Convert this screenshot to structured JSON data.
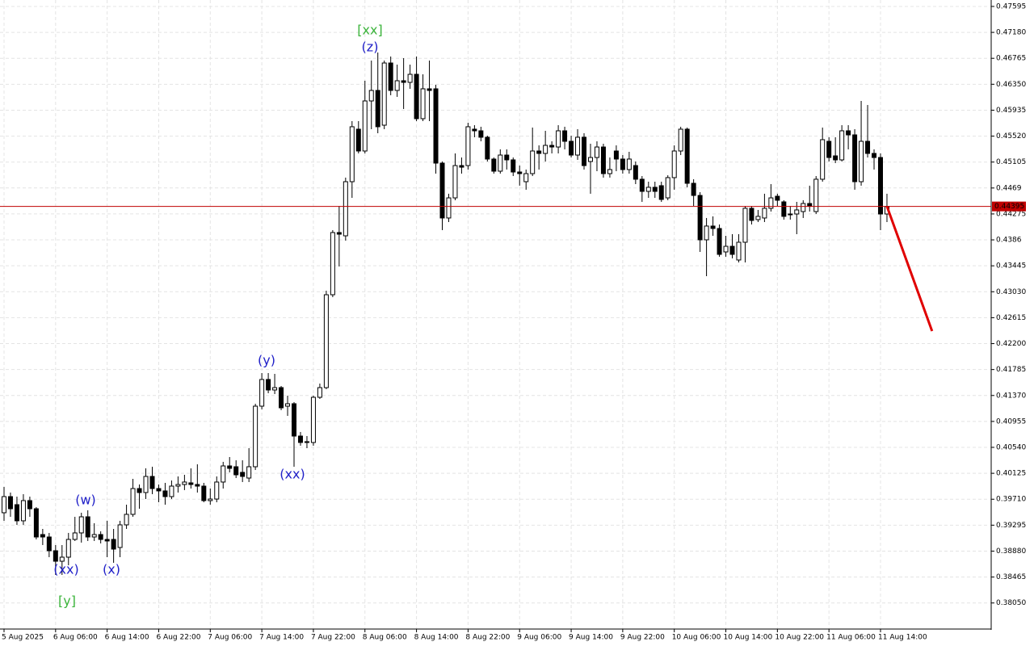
{
  "chart_data": {
    "type": "candlestick",
    "ylim": [
      0.37633,
      0.47698
    ],
    "yticks": [
      0.47595,
      {
        "value": 0.4718,
        "label": "0.47180"
      },
      0.46765,
      {
        "value": 0.4635,
        "label": "0.46350"
      },
      0.45935,
      {
        "value": 0.4552,
        "label": "0.45520"
      },
      0.45105,
      0.4469,
      0.44275,
      0.4386,
      0.43445,
      {
        "value": 0.4303,
        "label": "0.43030"
      },
      0.42615,
      {
        "value": 0.422,
        "label": "0.42200"
      },
      0.41785,
      {
        "value": 0.4137,
        "label": "0.41370"
      },
      0.40955,
      {
        "value": 0.4054,
        "label": "0.40540"
      },
      0.40125,
      {
        "value": 0.3971,
        "label": "0.39710"
      },
      0.39295,
      {
        "value": 0.3888,
        "label": "0.38880"
      },
      0.38465,
      {
        "value": 0.3805,
        "label": "0.38050"
      }
    ],
    "xticks": [
      {
        "value": 0,
        "label": "5 Aug 2025"
      },
      {
        "value": 8,
        "label": "6 Aug 06:00"
      },
      {
        "value": 16,
        "label": "6 Aug 14:00"
      },
      {
        "value": 24,
        "label": "6 Aug 22:00"
      },
      {
        "value": 32,
        "label": "7 Aug 06:00"
      },
      {
        "value": 40,
        "label": "7 Aug 14:00"
      },
      {
        "value": 48,
        "label": "7 Aug 22:00"
      },
      {
        "value": 56,
        "label": "8 Aug 06:00"
      },
      {
        "value": 64,
        "label": "8 Aug 14:00"
      },
      {
        "value": 72,
        "label": "8 Aug 22:00"
      },
      {
        "value": 80,
        "label": "9 Aug 06:00"
      },
      {
        "value": 88,
        "label": "9 Aug 14:00"
      },
      {
        "value": 96,
        "label": "9 Aug 22:00"
      },
      {
        "value": 104,
        "label": "10 Aug 06:00"
      },
      {
        "value": 112,
        "label": "10 Aug 14:00"
      },
      {
        "value": 120,
        "label": "10 Aug 22:00"
      },
      {
        "value": 128,
        "label": "11 Aug 06:00"
      },
      {
        "value": 136,
        "label": "11 Aug 14:00"
      }
    ],
    "grid": true,
    "up_color": "#ffffff",
    "down_color": "#000000",
    "candles": [
      [
        0.39494,
        0.39907,
        0.39365,
        0.39752
      ],
      [
        0.39752,
        0.39817,
        0.39429,
        0.39558
      ],
      [
        0.39623,
        0.39752,
        0.393,
        0.39365
      ],
      [
        0.39365,
        0.39791,
        0.393,
        0.39688
      ],
      [
        0.39688,
        0.39752,
        0.39429,
        0.39558
      ],
      [
        0.39558,
        0.39584,
        0.39067,
        0.39106
      ],
      [
        0.39145,
        0.39235,
        0.38977,
        0.39106
      ],
      [
        0.39106,
        0.39171,
        0.38783,
        0.38886
      ],
      [
        0.38886,
        0.38977,
        0.38499,
        0.38718
      ],
      [
        0.38718,
        0.38977,
        0.38499,
        0.38783
      ],
      [
        0.38783,
        0.39171,
        0.38654,
        0.39067
      ],
      [
        0.39067,
        0.39429,
        0.39042,
        0.39171
      ],
      [
        0.39171,
        0.39494,
        0.39016,
        0.39429
      ],
      [
        0.39429,
        0.39533,
        0.39042,
        0.39106
      ],
      [
        0.39106,
        0.39326,
        0.39042,
        0.39145
      ],
      [
        0.39145,
        0.39197,
        0.39003,
        0.39067
      ],
      [
        0.39067,
        0.39365,
        0.38783,
        0.39042
      ],
      [
        0.39067,
        0.39235,
        0.38693,
        0.38912
      ],
      [
        0.38938,
        0.39365,
        0.38783,
        0.393
      ],
      [
        0.393,
        0.39623,
        0.39235,
        0.39468
      ],
      [
        0.39468,
        0.40036,
        0.39429,
        0.39881
      ],
      [
        0.39881,
        0.39946,
        0.39558,
        0.39817
      ],
      [
        0.39817,
        0.40204,
        0.39713,
        0.40075
      ],
      [
        0.40075,
        0.4023,
        0.39791,
        0.39881
      ],
      [
        0.39881,
        0.39946,
        0.39662,
        0.39843
      ],
      [
        0.39843,
        0.39972,
        0.39623,
        0.39752
      ],
      [
        0.39752,
        0.4001,
        0.39713,
        0.3992
      ],
      [
        0.3992,
        0.40075,
        0.39817,
        0.39946
      ],
      [
        0.39946,
        0.40101,
        0.39856,
        0.39985
      ],
      [
        0.39972,
        0.40204,
        0.39881,
        0.39946
      ],
      [
        0.39946,
        0.40269,
        0.39817,
        0.3992
      ],
      [
        0.3992,
        0.39972,
        0.39662,
        0.39688
      ],
      [
        0.39688,
        0.39881,
        0.39623,
        0.39713
      ],
      [
        0.39713,
        0.40075,
        0.39662,
        0.39985
      ],
      [
        0.39985,
        0.40308,
        0.39881,
        0.40243
      ],
      [
        0.40243,
        0.40385,
        0.4014,
        0.40204
      ],
      [
        0.4023,
        0.40333,
        0.40049,
        0.40101
      ],
      [
        0.4014,
        0.40333,
        0.39985,
        0.40075
      ],
      [
        0.40049,
        0.40527,
        0.39985,
        0.4023
      ],
      [
        0.4023,
        0.41238,
        0.40178,
        0.41199
      ],
      [
        0.41199,
        0.41729,
        0.41148,
        0.41626
      ],
      [
        0.41626,
        0.41729,
        0.41406,
        0.41458
      ],
      [
        0.41458,
        0.41716,
        0.41393,
        0.41496
      ],
      [
        0.41496,
        0.41522,
        0.41135,
        0.41173
      ],
      [
        0.41199,
        0.41367,
        0.41044,
        0.41238
      ],
      [
        0.41238,
        0.41264,
        0.4023,
        0.40721
      ],
      [
        0.40721,
        0.40786,
        0.40566,
        0.40618
      ],
      [
        0.40618,
        0.40721,
        0.40527,
        0.40631
      ],
      [
        0.40618,
        0.41367,
        0.40566,
        0.41341
      ],
      [
        0.41341,
        0.41561,
        0.41315,
        0.41496
      ],
      [
        0.41496,
        0.43047,
        0.41471,
        0.42982
      ],
      [
        0.42982,
        0.44016,
        0.42943,
        0.43977
      ],
      [
        0.43977,
        0.44403,
        0.43434,
        0.43951
      ],
      [
        0.43925,
        0.44856,
        0.43848,
        0.44791
      ],
      [
        0.44791,
        0.4576,
        0.44532,
        0.4567
      ],
      [
        0.45631,
        0.4576,
        0.45243,
        0.45282
      ],
      [
        0.45282,
        0.46406,
        0.45243,
        0.46083
      ],
      [
        0.46083,
        0.46729,
        0.45631,
        0.46251
      ],
      [
        0.46251,
        0.46858,
        0.45566,
        0.4567
      ],
      [
        0.45695,
        0.46729,
        0.45631,
        0.4669
      ],
      [
        0.4669,
        0.46794,
        0.46174,
        0.46251
      ],
      [
        0.46251,
        0.46664,
        0.46148,
        0.46406
      ],
      [
        0.46406,
        0.46768,
        0.45954,
        0.4638
      ],
      [
        0.4638,
        0.46664,
        0.46277,
        0.46509
      ],
      [
        0.46509,
        0.46794,
        0.4576,
        0.45799
      ],
      [
        0.45799,
        0.46509,
        0.4576,
        0.46277
      ],
      [
        0.46277,
        0.46729,
        0.4576,
        0.46251
      ],
      [
        0.46277,
        0.46341,
        0.4492,
        0.45088
      ],
      [
        0.45088,
        0.45114,
        0.44016,
        0.4421
      ],
      [
        0.4421,
        0.44598,
        0.44145,
        0.44532
      ],
      [
        0.44532,
        0.45243,
        0.44494,
        0.45049
      ],
      [
        0.45049,
        0.45178,
        0.4492,
        0.45023
      ],
      [
        0.45049,
        0.45734,
        0.44985,
        0.4567
      ],
      [
        0.45631,
        0.45695,
        0.45502,
        0.45605
      ],
      [
        0.45605,
        0.4567,
        0.45437,
        0.45502
      ],
      [
        0.45502,
        0.45527,
        0.45114,
        0.45153
      ],
      [
        0.45153,
        0.45178,
        0.4492,
        0.44959
      ],
      [
        0.44959,
        0.45308,
        0.4492,
        0.45217
      ],
      [
        0.45217,
        0.45308,
        0.44985,
        0.4514
      ],
      [
        0.4514,
        0.45178,
        0.44881,
        0.44946
      ],
      [
        0.44946,
        0.45049,
        0.44727,
        0.4492
      ],
      [
        0.44791,
        0.44985,
        0.44662,
        0.4492
      ],
      [
        0.4492,
        0.45657,
        0.44881,
        0.45282
      ],
      [
        0.45282,
        0.45372,
        0.44985,
        0.45243
      ],
      [
        0.45243,
        0.45605,
        0.45114,
        0.45372
      ],
      [
        0.45372,
        0.45437,
        0.45243,
        0.45346
      ],
      [
        0.45346,
        0.45695,
        0.45243,
        0.45605
      ],
      [
        0.45605,
        0.4567,
        0.45308,
        0.45437
      ],
      [
        0.45437,
        0.45527,
        0.45178,
        0.45217
      ],
      [
        0.45217,
        0.45631,
        0.4514,
        0.45502
      ],
      [
        0.45502,
        0.45566,
        0.44985,
        0.45049
      ],
      [
        0.45114,
        0.45398,
        0.44598,
        0.45178
      ],
      [
        0.45178,
        0.45437,
        0.44959,
        0.45346
      ],
      [
        0.45346,
        0.45398,
        0.44856,
        0.4492
      ],
      [
        0.4492,
        0.45178,
        0.44856,
        0.44985
      ],
      [
        0.45282,
        0.45372,
        0.44959,
        0.45153
      ],
      [
        0.45153,
        0.45217,
        0.4492,
        0.44985
      ],
      [
        0.44985,
        0.45269,
        0.4492,
        0.45153
      ],
      [
        0.45049,
        0.45114,
        0.44752,
        0.4483
      ],
      [
        0.4483,
        0.44881,
        0.44468,
        0.44636
      ],
      [
        0.44636,
        0.44791,
        0.44532,
        0.44701
      ],
      [
        0.44701,
        0.44791,
        0.44532,
        0.44636
      ],
      [
        0.44727,
        0.44791,
        0.44468,
        0.44507
      ],
      [
        0.44532,
        0.44894,
        0.44494,
        0.44856
      ],
      [
        0.44856,
        0.45372,
        0.44662,
        0.45282
      ],
      [
        0.45282,
        0.4567,
        0.45217,
        0.45631
      ],
      [
        0.45631,
        0.45657,
        0.44701,
        0.44765
      ],
      [
        0.44765,
        0.4483,
        0.44403,
        0.44571
      ],
      [
        0.44571,
        0.44623,
        0.43667,
        0.43861
      ],
      [
        0.43861,
        0.4421,
        0.43279,
        0.44081
      ],
      [
        0.44081,
        0.44236,
        0.43925,
        0.44042
      ],
      [
        0.44042,
        0.44106,
        0.4359,
        0.43628
      ],
      [
        0.43667,
        0.43925,
        0.4359,
        0.43757
      ],
      [
        0.43757,
        0.43951,
        0.43564,
        0.43628
      ],
      [
        0.43538,
        0.43951,
        0.43499,
        0.43822
      ],
      [
        0.43822,
        0.44403,
        0.43499,
        0.44365
      ],
      [
        0.44365,
        0.44403,
        0.44106,
        0.44171
      ],
      [
        0.44184,
        0.44339,
        0.44145,
        0.44236
      ],
      [
        0.4421,
        0.44598,
        0.44145,
        0.44365
      ],
      [
        0.44365,
        0.44752,
        0.44313,
        0.44532
      ],
      [
        0.44558,
        0.44598,
        0.44403,
        0.44494
      ],
      [
        0.44468,
        0.44494,
        0.44184,
        0.44236
      ],
      [
        0.44274,
        0.44403,
        0.44184,
        0.44261
      ],
      [
        0.44274,
        0.44468,
        0.43951,
        0.44339
      ],
      [
        0.44313,
        0.44494,
        0.4421,
        0.44442
      ],
      [
        0.44442,
        0.44727,
        0.44313,
        0.44403
      ],
      [
        0.44313,
        0.44881,
        0.44274,
        0.4483
      ],
      [
        0.4483,
        0.45657,
        0.44791,
        0.45463
      ],
      [
        0.45437,
        0.45502,
        0.45114,
        0.45178
      ],
      [
        0.45204,
        0.45502,
        0.45088,
        0.4514
      ],
      [
        0.4514,
        0.45695,
        0.45114,
        0.45605
      ],
      [
        0.45605,
        0.45695,
        0.45308,
        0.4554
      ],
      [
        0.4554,
        0.45631,
        0.44662,
        0.44791
      ],
      [
        0.44791,
        0.46083,
        0.44727,
        0.45437
      ],
      [
        0.45437,
        0.46018,
        0.45178,
        0.45243
      ],
      [
        0.45243,
        0.45308,
        0.44985,
        0.45178
      ],
      [
        0.45178,
        0.45243,
        0.44016,
        0.44274
      ],
      [
        0.44274,
        0.44598,
        0.44145,
        0.44395
      ]
    ],
    "price_line": 0.44395,
    "price_line_color": "#c00000",
    "forecast": {
      "from": [
        137,
        0.44395
      ],
      "to": [
        144,
        0.42401
      ],
      "color": "#e00000"
    },
    "annotations": [
      {
        "text": "[xx]",
        "color": "#3cb43c"
      },
      {
        "text": "(z)",
        "color": "#2020c8"
      },
      {
        "text": "(y)",
        "color": "#2020c8"
      },
      {
        "text": "(xx)",
        "color": "#2020c8"
      },
      {
        "text": "(w)",
        "color": "#2020c8"
      },
      {
        "text": "(xx)",
        "color": "#2020c8"
      },
      {
        "text": "(x)",
        "color": "#2020c8"
      },
      {
        "text": "[y]",
        "color": "#3cb43c"
      }
    ]
  }
}
